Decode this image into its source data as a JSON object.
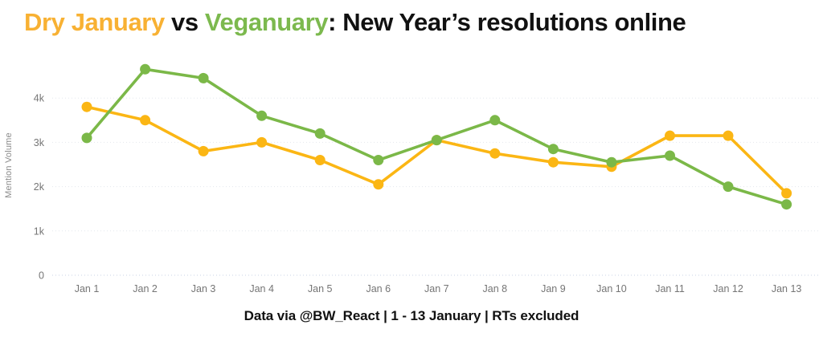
{
  "title": {
    "segments": [
      {
        "text": "Dry January",
        "color": "#F8B133"
      },
      {
        "text": " vs ",
        "color": "#111111"
      },
      {
        "text": "Veganuary",
        "color": "#7CB94E"
      },
      {
        "text": ": New Year’s resolutions online",
        "color": "#111111"
      }
    ]
  },
  "footer": "Data via @BW_React | 1 - 13 January | RTs excluded",
  "colors": {
    "dry_january_line": "#FBB614",
    "veganuary_line": "#7BB848",
    "gridline": "#E4E7ED",
    "zero_gridline": "#C9D3E6",
    "tick_text": "#757575",
    "axis_title_text": "#8A8A8A"
  },
  "chart_data": {
    "type": "line",
    "title": "Dry January vs Veganuary: New Year’s resolutions online",
    "xlabel": "",
    "ylabel": "Mention Volume",
    "categories": [
      "Jan 1",
      "Jan 2",
      "Jan 3",
      "Jan 4",
      "Jan 5",
      "Jan 6",
      "Jan 7",
      "Jan 8",
      "Jan 9",
      "Jan 10",
      "Jan 11",
      "Jan 12",
      "Jan 13"
    ],
    "y_ticks": [
      {
        "label": "0",
        "value": 0
      },
      {
        "label": "1k",
        "value": 1000
      },
      {
        "label": "2k",
        "value": 2000
      },
      {
        "label": "3k",
        "value": 3000
      },
      {
        "label": "4k",
        "value": 4000
      }
    ],
    "ylim": [
      0,
      4800
    ],
    "grid": true,
    "legend": "none (series identified by title colors)",
    "series": [
      {
        "name": "Dry January",
        "color": "#FBB614",
        "values": [
          3800,
          3500,
          2800,
          3000,
          2600,
          2050,
          3050,
          2750,
          2550,
          2450,
          3150,
          3150,
          1850
        ]
      },
      {
        "name": "Veganuary",
        "color": "#7BB848",
        "values": [
          3100,
          4650,
          4450,
          3600,
          3200,
          2600,
          3050,
          3500,
          2850,
          2550,
          2700,
          2000,
          1600
        ]
      }
    ]
  }
}
